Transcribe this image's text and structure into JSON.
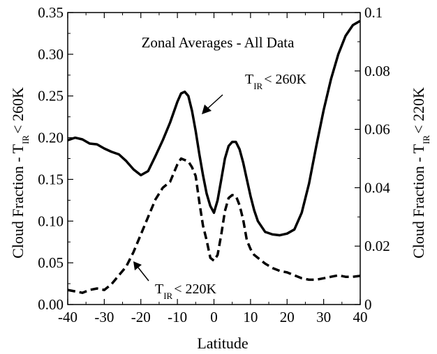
{
  "chart_data": {
    "type": "line",
    "title": "Zonal Averages - All Data",
    "xlabel": "Latitude",
    "ylabel_left": {
      "main": "Cloud Fraction - T",
      "sub": "IR",
      "suffix": "< 260K"
    },
    "ylabel_right": {
      "main": "Cloud Fraction - T",
      "sub": "IR",
      "suffix": "< 220K"
    },
    "xlim": [
      -40,
      40
    ],
    "ylim_left": [
      0,
      0.35
    ],
    "ylim_right": [
      0,
      0.1
    ],
    "x_ticks": [
      "-40",
      "-30",
      "-20",
      "-10",
      "0",
      "10",
      "20",
      "30",
      "40"
    ],
    "y_left_ticks": [
      "0.00",
      "0.05",
      "0.10",
      "0.15",
      "0.20",
      "0.25",
      "0.30",
      "0.35"
    ],
    "y_right_ticks": [
      "0",
      "0.02",
      "0.04",
      "0.06",
      "0.08",
      "0.1"
    ],
    "grid": false,
    "series": [
      {
        "label_main": "T",
        "label_sub": "IR",
        "label_suffix": "< 260K",
        "axis": "left",
        "style": "solid",
        "color": "#000000",
        "x": [
          -40,
          -38,
          -36,
          -34,
          -32,
          -30,
          -28,
          -26,
          -24,
          -22,
          -20,
          -18,
          -16,
          -14,
          -12,
          -10,
          -9,
          -8,
          -7,
          -6,
          -5,
          -4,
          -3,
          -2,
          -1,
          0,
          1,
          2,
          3,
          4,
          5,
          6,
          7,
          8,
          9,
          10,
          11,
          12,
          14,
          16,
          18,
          20,
          22,
          24,
          26,
          28,
          30,
          32,
          34,
          36,
          38,
          40
        ],
        "y": [
          0.197,
          0.2,
          0.198,
          0.193,
          0.192,
          0.187,
          0.183,
          0.18,
          0.172,
          0.162,
          0.155,
          0.16,
          0.178,
          0.197,
          0.218,
          0.243,
          0.253,
          0.255,
          0.25,
          0.232,
          0.208,
          0.18,
          0.155,
          0.133,
          0.118,
          0.11,
          0.125,
          0.15,
          0.175,
          0.19,
          0.195,
          0.195,
          0.186,
          0.17,
          0.15,
          0.13,
          0.113,
          0.1,
          0.087,
          0.084,
          0.083,
          0.085,
          0.09,
          0.11,
          0.145,
          0.19,
          0.233,
          0.27,
          0.3,
          0.322,
          0.335,
          0.34
        ]
      },
      {
        "label_main": "T",
        "label_sub": "IR",
        "label_suffix": "< 220K",
        "axis": "right",
        "style": "dashed",
        "color": "#000000",
        "x": [
          -40,
          -38,
          -36,
          -34,
          -32,
          -30,
          -28,
          -26,
          -24,
          -22,
          -20,
          -18,
          -16,
          -14,
          -12,
          -10,
          -9,
          -8,
          -7,
          -6,
          -5,
          -4,
          -3,
          -2,
          -1,
          0,
          1,
          2,
          3,
          4,
          5,
          6,
          7,
          8,
          9,
          10,
          11,
          12,
          14,
          16,
          18,
          20,
          22,
          24,
          26,
          28,
          30,
          32,
          34,
          36,
          38,
          40
        ],
        "y": [
          0.005,
          0.0045,
          0.004,
          0.005,
          0.0055,
          0.005,
          0.007,
          0.01,
          0.013,
          0.018,
          0.024,
          0.03,
          0.036,
          0.04,
          0.042,
          0.048,
          0.05,
          0.0495,
          0.049,
          0.047,
          0.044,
          0.035,
          0.027,
          0.022,
          0.016,
          0.015,
          0.017,
          0.024,
          0.032,
          0.0365,
          0.0375,
          0.0372,
          0.034,
          0.029,
          0.022,
          0.019,
          0.017,
          0.016,
          0.014,
          0.0125,
          0.0115,
          0.011,
          0.01,
          0.009,
          0.0085,
          0.0085,
          0.009,
          0.0095,
          0.01,
          0.0095,
          0.0095,
          0.0098
        ]
      }
    ]
  }
}
